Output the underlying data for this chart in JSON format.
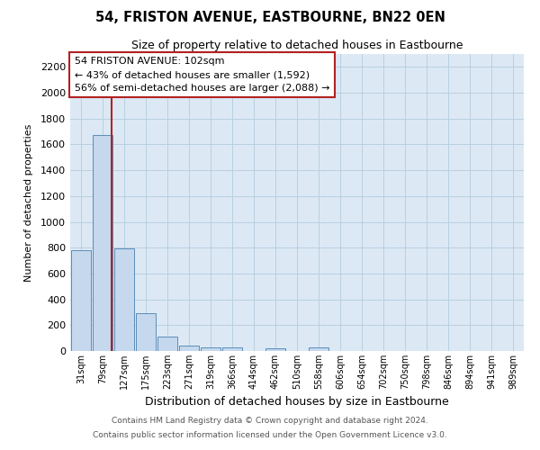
{
  "title": "54, FRISTON AVENUE, EASTBOURNE, BN22 0EN",
  "subtitle": "Size of property relative to detached houses in Eastbourne",
  "xlabel": "Distribution of detached houses by size in Eastbourne",
  "ylabel": "Number of detached properties",
  "footer1": "Contains HM Land Registry data © Crown copyright and database right 2024.",
  "footer2": "Contains public sector information licensed under the Open Government Licence v3.0.",
  "annotation_title": "54 FRISTON AVENUE: 102sqm",
  "annotation_line2": "← 43% of detached houses are smaller (1,592)",
  "annotation_line3": "56% of semi-detached houses are larger (2,088) →",
  "bar_labels": [
    "31sqm",
    "79sqm",
    "127sqm",
    "175sqm",
    "223sqm",
    "271sqm",
    "319sqm",
    "366sqm",
    "414sqm",
    "462sqm",
    "510sqm",
    "558sqm",
    "606sqm",
    "654sqm",
    "702sqm",
    "750sqm",
    "798sqm",
    "846sqm",
    "894sqm",
    "941sqm",
    "989sqm"
  ],
  "bar_values": [
    780,
    1670,
    795,
    295,
    110,
    40,
    28,
    25,
    0,
    18,
    0,
    25,
    0,
    0,
    0,
    0,
    0,
    0,
    0,
    0,
    0
  ],
  "bar_color": "#c5d8ed",
  "bar_edge_color": "#5b8db8",
  "reference_line_x": 1.42,
  "reference_line_color": "#b22222",
  "ylim": [
    0,
    2300
  ],
  "yticks": [
    0,
    200,
    400,
    600,
    800,
    1000,
    1200,
    1400,
    1600,
    1800,
    2000,
    2200
  ],
  "bg_color": "#ffffff",
  "plot_bg_color": "#dce9f5",
  "grid_color": "#b8cfe0",
  "annotation_box_color": "#ffffff",
  "annotation_border_color": "#b22222"
}
